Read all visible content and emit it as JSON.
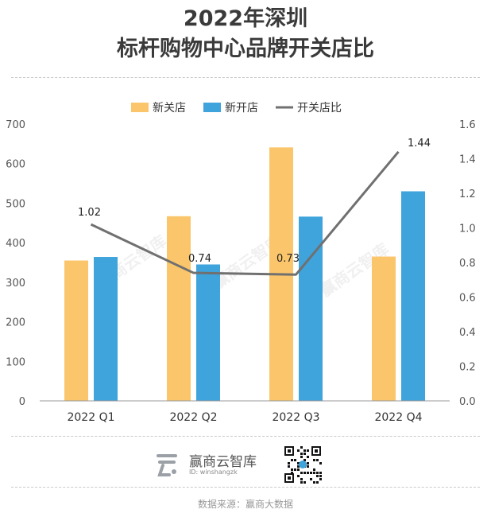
{
  "chart_data": {
    "type": "bar+line",
    "title_line1": "2022年深圳",
    "title_line2": "标杆购物中心品牌开关店比",
    "categories": [
      "2022 Q1",
      "2022 Q2",
      "2022 Q3",
      "2022 Q4"
    ],
    "series": [
      {
        "name": "新关店",
        "type": "bar",
        "axis": "left",
        "color": "#fbc66b",
        "values": [
          355,
          467,
          641,
          365
        ]
      },
      {
        "name": "新开店",
        "type": "bar",
        "axis": "left",
        "color": "#3fa3dc",
        "values": [
          364,
          345,
          466,
          530
        ]
      },
      {
        "name": "开关店比",
        "type": "line",
        "axis": "right",
        "color": "#707070",
        "values": [
          1.02,
          0.74,
          0.73,
          1.44
        ]
      }
    ],
    "line_labels": [
      "1.02",
      "0.74",
      "0.73",
      "1.44"
    ],
    "y_left": {
      "min": 0,
      "max": 700,
      "ticks": [
        0,
        100,
        200,
        300,
        400,
        500,
        600,
        700
      ]
    },
    "y_right": {
      "min": 0,
      "max": 1.6,
      "ticks": [
        "0.0",
        "0.2",
        "0.4",
        "0.6",
        "0.8",
        "1.0",
        "1.2",
        "1.4",
        "1.6"
      ]
    },
    "grid": false,
    "legend_position": "top-center"
  },
  "watermark": "赢商云智库",
  "footer": {
    "brand": "赢商云智库",
    "id_text": "ID: winshangzk",
    "source": "数据来源：赢商大数据"
  }
}
